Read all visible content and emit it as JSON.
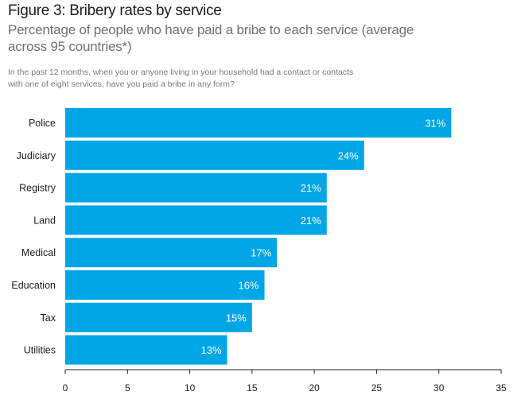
{
  "chart_data": {
    "type": "bar",
    "orientation": "horizontal",
    "title": "Figure 3: Bribery rates by service",
    "subtitle": "Percentage of people who have paid a bribe to each service (average across 95 countries*)",
    "question": "In the past 12 months, when you or anyone living in your household had a contact or contacts with one of eight services, have you paid a bribe in any form?",
    "categories": [
      "Police",
      "Judiciary",
      "Registry",
      "Land",
      "Medical",
      "Education",
      "Tax",
      "Utilities"
    ],
    "values": [
      31,
      24,
      21,
      21,
      17,
      16,
      15,
      13
    ],
    "value_labels": [
      "31%",
      "24%",
      "21%",
      "21%",
      "17%",
      "16%",
      "15%",
      "13%"
    ],
    "xlim": [
      0,
      35
    ],
    "xticks": [
      0,
      5,
      10,
      15,
      20,
      25,
      30,
      35
    ],
    "grid": false,
    "bar_color": "#00a6e5"
  }
}
